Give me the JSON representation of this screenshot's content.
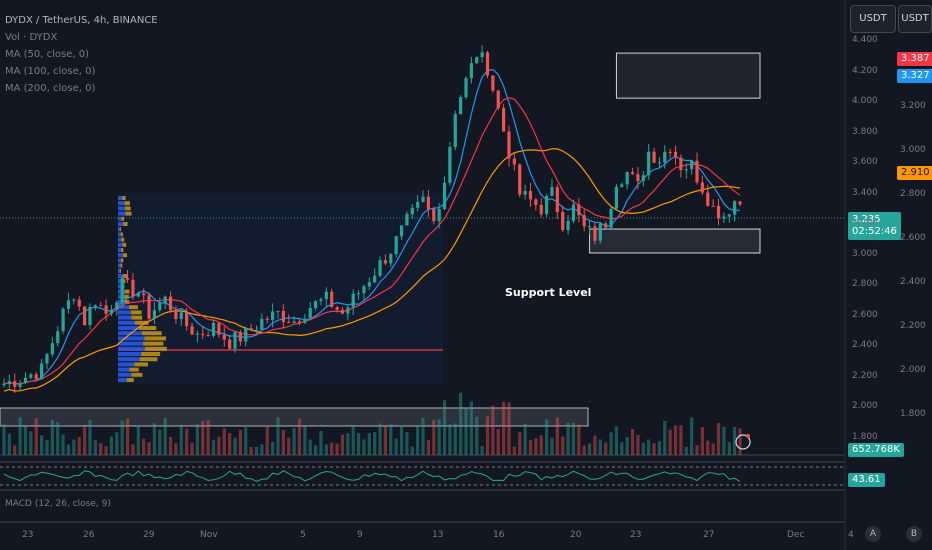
{
  "legend": {
    "symbol": "DYDX / TetherUS, 4h, BINANCE",
    "vol": "Vol · DYDX",
    "ma50": "MA (50, close, 0)",
    "ma100": "MA (100, close, 0)",
    "ma200": "MA (200, close, 0)"
  },
  "header": {
    "currency_left": "USDT",
    "currency_right": "USDT"
  },
  "annotation": {
    "support": "Support Level"
  },
  "tags": {
    "ma200": "3.387",
    "ma50": "3.327",
    "ma100": "2.910",
    "price": "3.235",
    "countdown": "02:52:46",
    "volume": "652.768K",
    "rsi": "43.61"
  },
  "macd_label": "MACD (12, 26, close, 9)",
  "axis_right_labels": [
    "4.400",
    "4.200",
    "4.000",
    "3.800",
    "3.600",
    "3.400",
    "3.200",
    "3.000",
    "2.800",
    "2.600",
    "2.400",
    "2.200",
    "2.000",
    "1.800"
  ],
  "axis_right_labels2": [
    "3.200",
    "3.000",
    "2.800",
    "2.600",
    "2.400",
    "2.200",
    "2.000",
    "1.800"
  ],
  "x_labels": [
    "23",
    "26",
    "29",
    "Nov",
    "5",
    "9",
    "13",
    "16",
    "20",
    "23",
    "27",
    "Dec",
    "4"
  ],
  "buttons": {
    "a": "A",
    "b": "B"
  },
  "colors": {
    "up": "#26a69a",
    "down": "#ef5350",
    "ma50": "#2196f3",
    "ma100": "#ff9800",
    "ma200": "#f23645",
    "bg": "#131722",
    "grid": "#2a2e39"
  },
  "chart_data": {
    "type": "candlestick",
    "symbol": "DYDX / TetherUS",
    "interval": "4h",
    "exchange": "BINANCE",
    "y_range": [
      1.8,
      4.45
    ],
    "y_unit": "USDT",
    "last_price": 3.235,
    "support_zone": [
      2.9,
      3.05
    ],
    "resistance_zone": [
      3.95,
      4.3
    ],
    "price_path": [
      [
        0,
        1.95
      ],
      [
        4,
        2.0
      ],
      [
        7,
        2.05
      ],
      [
        9,
        2.25
      ],
      [
        11,
        2.45
      ],
      [
        13,
        2.6
      ],
      [
        15,
        2.4
      ],
      [
        17,
        2.55
      ],
      [
        19,
        2.45
      ],
      [
        22,
        2.65
      ],
      [
        25,
        2.6
      ],
      [
        27,
        2.45
      ],
      [
        30,
        2.55
      ],
      [
        33,
        2.4
      ],
      [
        36,
        2.3
      ],
      [
        39,
        2.35
      ],
      [
        42,
        2.25
      ],
      [
        45,
        2.3
      ],
      [
        48,
        2.4
      ],
      [
        51,
        2.45
      ],
      [
        54,
        2.4
      ],
      [
        57,
        2.5
      ],
      [
        60,
        2.55
      ],
      [
        63,
        2.45
      ],
      [
        66,
        2.6
      ],
      [
        69,
        2.75
      ],
      [
        72,
        2.9
      ],
      [
        75,
        3.1
      ],
      [
        78,
        3.25
      ],
      [
        80,
        3.1
      ],
      [
        82,
        3.4
      ],
      [
        84,
        3.9
      ],
      [
        86,
        4.1
      ],
      [
        88,
        4.3
      ],
      [
        90,
        4.2
      ],
      [
        92,
        3.9
      ],
      [
        94,
        3.6
      ],
      [
        96,
        3.3
      ],
      [
        98,
        3.25
      ],
      [
        100,
        3.2
      ],
      [
        102,
        3.3
      ],
      [
        104,
        3.1
      ],
      [
        106,
        3.2
      ],
      [
        108,
        3.05
      ],
      [
        110,
        3.0
      ],
      [
        112,
        3.1
      ],
      [
        114,
        3.4
      ],
      [
        116,
        3.45
      ],
      [
        118,
        3.35
      ],
      [
        120,
        3.6
      ],
      [
        122,
        3.55
      ],
      [
        124,
        3.65
      ],
      [
        126,
        3.5
      ],
      [
        128,
        3.5
      ],
      [
        130,
        3.35
      ],
      [
        132,
        3.2
      ],
      [
        134,
        3.15
      ],
      [
        136,
        3.25
      ],
      [
        137,
        3.235
      ]
    ]
  }
}
